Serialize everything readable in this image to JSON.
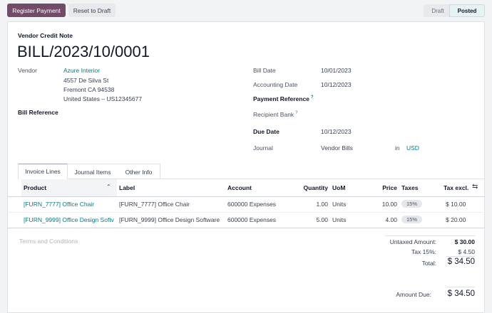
{
  "toolbar": {
    "register_payment": "Register Payment",
    "reset_to_draft": "Reset to Draft"
  },
  "statusbar": {
    "steps": [
      "Draft",
      "Posted"
    ],
    "active": "Posted"
  },
  "form": {
    "doc_type": "Vendor Credit Note",
    "title": "BILL/2023/10/0001",
    "vendor_label": "Vendor",
    "vendor_name": "Azure Interior",
    "address": [
      "4557 De Silva St",
      "Fremont CA 94538",
      "United States – US12345677"
    ],
    "bill_reference_label": "Bill Reference",
    "bill_date_label": "Bill Date",
    "bill_date": "10/01/2023",
    "accounting_date_label": "Accounting Date",
    "accounting_date": "10/12/2023",
    "payment_reference_label": "Payment Reference",
    "help_mark": "?",
    "recipient_bank_label": "Recipient Bank",
    "due_date_label": "Due Date",
    "due_date": "10/12/2023",
    "journal_label": "Journal",
    "journal": "Vendor Bills",
    "in_label": "in",
    "currency": "USD"
  },
  "tabs": [
    "Invoice Lines",
    "Journal Items",
    "Other Info"
  ],
  "table": {
    "headers": {
      "product": "Product",
      "label": "Label",
      "account": "Account",
      "quantity": "Quantity",
      "uom": "UoM",
      "price": "Price",
      "taxes": "Taxes",
      "tax_excl": "Tax excl."
    },
    "rows": [
      {
        "product": "[FURN_7777] Office Chair",
        "label": "[FURN_7777] Office Chair",
        "account": "600000 Expenses",
        "quantity": "1.00",
        "uom": "Units",
        "price": "10.00",
        "taxes": "15%",
        "tax_excl": "$ 10.00"
      },
      {
        "product": "[FURN_9999] Office Design Softv",
        "label": "[FURN_9999] Office Design Software",
        "account": "600000 Expenses",
        "quantity": "5.00",
        "uom": "Units",
        "price": "4.00",
        "taxes": "15%",
        "tax_excl": "$ 20.00"
      }
    ]
  },
  "terms_placeholder": "Terms and Conditions",
  "totals": {
    "untaxed_label": "Untaxed Amount:",
    "untaxed": "$ 30.00",
    "tax_label": "Tax 15%:",
    "tax": "$ 4.50",
    "total_label": "Total:",
    "total": "$ 34.50",
    "due_label": "Amount Due:",
    "due": "$ 34.50"
  },
  "colors": {
    "primary": "#714b67",
    "link": "#017e84"
  }
}
